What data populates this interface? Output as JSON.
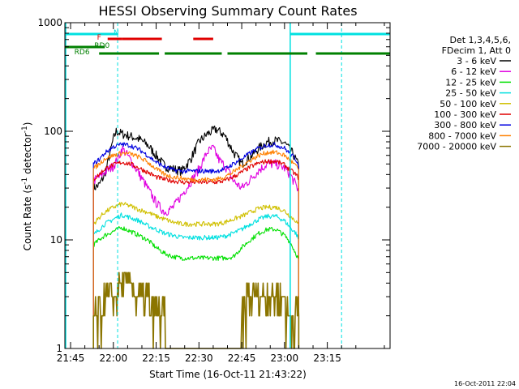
{
  "chart_data": {
    "type": "line",
    "title": "HESSI Observing Summary Count Rates",
    "xlabel": "Start Time (16-Oct-11 21:43:22)",
    "ylabel_main": "Count Rate (s",
    "ylabel_sup1": "-1",
    "ylabel_mid": " detector",
    "ylabel_sup2": "-1",
    "ylabel_end": ")",
    "yscale": "log",
    "ylim": [
      1,
      1000
    ],
    "xlim_minutes": [
      -17,
      97
    ],
    "x_ticks": [
      {
        "m": -15,
        "label": "21:45"
      },
      {
        "m": 0,
        "label": "22:00"
      },
      {
        "m": 15,
        "label": "22:15"
      },
      {
        "m": 30,
        "label": "22:30"
      },
      {
        "m": 45,
        "label": "22:45"
      },
      {
        "m": 60,
        "label": "23:00"
      },
      {
        "m": 75,
        "label": "23:15"
      }
    ],
    "y_ticks": [
      {
        "v": 1,
        "label": "1"
      },
      {
        "v": 10,
        "label": "10"
      },
      {
        "v": 100,
        "label": "100"
      },
      {
        "v": 1000,
        "label": "1000"
      }
    ],
    "legend_header": [
      "Det 1,3,4,5,6,",
      "FDecim 1, Att 0"
    ],
    "legend_position": "right",
    "series": [
      {
        "name": "3 - 6 keV",
        "color": "#000000",
        "points": [
          [
            -7,
            30
          ],
          [
            -5,
            32
          ],
          [
            -3,
            40
          ],
          [
            0,
            85
          ],
          [
            1,
            100
          ],
          [
            3,
            95
          ],
          [
            6,
            90
          ],
          [
            9,
            85
          ],
          [
            12,
            75
          ],
          [
            15,
            60
          ],
          [
            18,
            48
          ],
          [
            21,
            45
          ],
          [
            24,
            43
          ],
          [
            27,
            55
          ],
          [
            30,
            80
          ],
          [
            33,
            95
          ],
          [
            36,
            105
          ],
          [
            39,
            92
          ],
          [
            42,
            65
          ],
          [
            45,
            50
          ],
          [
            48,
            58
          ],
          [
            51,
            70
          ],
          [
            54,
            80
          ],
          [
            57,
            82
          ],
          [
            60,
            78
          ],
          [
            63,
            62
          ],
          [
            65,
            48
          ]
        ]
      },
      {
        "name": "6 - 12 keV",
        "color": "#e000e0",
        "points": [
          [
            -7,
            35
          ],
          [
            -5,
            38
          ],
          [
            -3,
            42
          ],
          [
            0,
            48
          ],
          [
            2,
            58
          ],
          [
            3,
            70
          ],
          [
            5,
            60
          ],
          [
            8,
            45
          ],
          [
            12,
            30
          ],
          [
            15,
            22
          ],
          [
            18,
            18
          ],
          [
            21,
            20
          ],
          [
            24,
            26
          ],
          [
            27,
            34
          ],
          [
            30,
            45
          ],
          [
            33,
            65
          ],
          [
            35,
            70
          ],
          [
            37,
            55
          ],
          [
            40,
            45
          ],
          [
            42,
            35
          ],
          [
            45,
            30
          ],
          [
            48,
            36
          ],
          [
            51,
            44
          ],
          [
            54,
            50
          ],
          [
            57,
            50
          ],
          [
            60,
            46
          ],
          [
            62,
            40
          ],
          [
            64,
            32
          ],
          [
            65,
            28
          ]
        ]
      },
      {
        "name": "12 - 25 keV",
        "color": "#00e000",
        "points": [
          [
            -7,
            9
          ],
          [
            -5,
            10
          ],
          [
            -3,
            11
          ],
          [
            0,
            12
          ],
          [
            3,
            13
          ],
          [
            6,
            12
          ],
          [
            9,
            11
          ],
          [
            12,
            10
          ],
          [
            15,
            8.5
          ],
          [
            18,
            7.5
          ],
          [
            21,
            7
          ],
          [
            24,
            6.8
          ],
          [
            27,
            6.8
          ],
          [
            30,
            6.8
          ],
          [
            33,
            6.8
          ],
          [
            36,
            6.8
          ],
          [
            39,
            6.8
          ],
          [
            42,
            7
          ],
          [
            45,
            8.5
          ],
          [
            48,
            10
          ],
          [
            51,
            11.5
          ],
          [
            54,
            12.5
          ],
          [
            57,
            12.5
          ],
          [
            60,
            11
          ],
          [
            62,
            9.5
          ],
          [
            64,
            7.5
          ],
          [
            65,
            6.5
          ]
        ]
      },
      {
        "name": "25 - 50 keV",
        "color": "#00e0e0",
        "points": [
          [
            -7,
            11
          ],
          [
            -5,
            12.5
          ],
          [
            -3,
            14
          ],
          [
            0,
            15.5
          ],
          [
            3,
            17
          ],
          [
            6,
            16
          ],
          [
            9,
            15
          ],
          [
            12,
            13.5
          ],
          [
            15,
            12.5
          ],
          [
            18,
            11.5
          ],
          [
            21,
            11
          ],
          [
            24,
            10.5
          ],
          [
            27,
            10.5
          ],
          [
            30,
            10.5
          ],
          [
            33,
            10.5
          ],
          [
            36,
            10.5
          ],
          [
            39,
            10.8
          ],
          [
            42,
            11.5
          ],
          [
            45,
            12.5
          ],
          [
            48,
            14
          ],
          [
            51,
            15.5
          ],
          [
            54,
            16.5
          ],
          [
            57,
            16.5
          ],
          [
            60,
            15
          ],
          [
            62,
            13
          ],
          [
            64,
            11.5
          ],
          [
            65,
            10
          ]
        ]
      },
      {
        "name": "50 - 100 keV",
        "color": "#d0c000",
        "points": [
          [
            -7,
            14
          ],
          [
            -5,
            16
          ],
          [
            -3,
            18
          ],
          [
            0,
            20
          ],
          [
            3,
            21.5
          ],
          [
            6,
            20.5
          ],
          [
            9,
            19
          ],
          [
            12,
            18
          ],
          [
            15,
            16.5
          ],
          [
            18,
            15.5
          ],
          [
            21,
            14.5
          ],
          [
            24,
            14
          ],
          [
            27,
            14
          ],
          [
            30,
            14
          ],
          [
            33,
            14
          ],
          [
            36,
            14
          ],
          [
            39,
            14.5
          ],
          [
            42,
            15.5
          ],
          [
            45,
            16.5
          ],
          [
            48,
            18
          ],
          [
            51,
            19.5
          ],
          [
            54,
            20
          ],
          [
            57,
            20
          ],
          [
            60,
            18.5
          ],
          [
            62,
            16.5
          ],
          [
            64,
            15
          ],
          [
            65,
            13.5
          ]
        ]
      },
      {
        "name": "100 - 300 keV",
        "color": "#e00000",
        "points": [
          [
            -7,
            36
          ],
          [
            -5,
            40
          ],
          [
            -3,
            45
          ],
          [
            0,
            49
          ],
          [
            3,
            52
          ],
          [
            6,
            50
          ],
          [
            9,
            46
          ],
          [
            12,
            42
          ],
          [
            15,
            38
          ],
          [
            18,
            36
          ],
          [
            21,
            35
          ],
          [
            24,
            34
          ],
          [
            27,
            34
          ],
          [
            30,
            34
          ],
          [
            33,
            34
          ],
          [
            36,
            34
          ],
          [
            39,
            35
          ],
          [
            42,
            38
          ],
          [
            45,
            42
          ],
          [
            48,
            47
          ],
          [
            51,
            51
          ],
          [
            54,
            53
          ],
          [
            57,
            53
          ],
          [
            60,
            49
          ],
          [
            62,
            44
          ],
          [
            64,
            40
          ],
          [
            65,
            37
          ]
        ]
      },
      {
        "name": "300 - 800 keV",
        "color": "#0000e0",
        "points": [
          [
            -7,
            50
          ],
          [
            -5,
            55
          ],
          [
            -3,
            63
          ],
          [
            0,
            72
          ],
          [
            3,
            76
          ],
          [
            6,
            74
          ],
          [
            9,
            68
          ],
          [
            12,
            60
          ],
          [
            15,
            52
          ],
          [
            18,
            47
          ],
          [
            21,
            44
          ],
          [
            24,
            43
          ],
          [
            27,
            43
          ],
          [
            30,
            43
          ],
          [
            33,
            43
          ],
          [
            36,
            43
          ],
          [
            39,
            45
          ],
          [
            42,
            50
          ],
          [
            45,
            56
          ],
          [
            48,
            63
          ],
          [
            51,
            70
          ],
          [
            54,
            75
          ],
          [
            57,
            75
          ],
          [
            60,
            70
          ],
          [
            62,
            62
          ],
          [
            64,
            55
          ],
          [
            65,
            50
          ]
        ]
      },
      {
        "name": "800 - 7000 keV",
        "color": "#ff8000",
        "points": [
          [
            -7,
            45
          ],
          [
            -5,
            50
          ],
          [
            -3,
            56
          ],
          [
            0,
            60
          ],
          [
            3,
            63
          ],
          [
            6,
            62
          ],
          [
            9,
            58
          ],
          [
            12,
            52
          ],
          [
            15,
            45
          ],
          [
            18,
            40
          ],
          [
            21,
            38
          ],
          [
            24,
            37
          ],
          [
            27,
            36
          ],
          [
            30,
            36
          ],
          [
            33,
            36
          ],
          [
            36,
            36
          ],
          [
            39,
            38
          ],
          [
            42,
            42
          ],
          [
            45,
            48
          ],
          [
            48,
            54
          ],
          [
            51,
            60
          ],
          [
            54,
            64
          ],
          [
            57,
            64
          ],
          [
            60,
            60
          ],
          [
            62,
            54
          ],
          [
            64,
            48
          ],
          [
            65,
            44
          ]
        ]
      },
      {
        "name": "7000 - 20000 keV",
        "color": "#8b7500",
        "points": [
          [
            -7,
            1.8
          ],
          [
            -5,
            2.2
          ],
          [
            -3,
            2.8
          ],
          [
            0,
            3.3
          ],
          [
            3,
            3.8
          ],
          [
            6,
            3.8
          ],
          [
            9,
            3.2
          ],
          [
            12,
            2.6
          ],
          [
            15,
            2.2
          ],
          [
            18,
            1.8
          ],
          [
            45,
            2.2
          ],
          [
            48,
            2.8
          ],
          [
            51,
            3.3
          ],
          [
            54,
            3.5
          ],
          [
            57,
            3.3
          ],
          [
            60,
            2.6
          ],
          [
            63,
            2
          ],
          [
            65,
            1.8
          ]
        ]
      }
    ],
    "state_bars": [
      {
        "label": "N",
        "color": "#00e0e0",
        "label_m": 1,
        "segments": [
          [
            -17,
            1.5
          ],
          [
            62,
            97
          ]
        ]
      },
      {
        "label": "F",
        "color": "#e00000",
        "label_m": -5,
        "segments": [
          [
            -2,
            3
          ],
          [
            3,
            17
          ],
          [
            28,
            35
          ]
        ]
      },
      {
        "label": "RD0",
        "color": "#008000",
        "label_m": -4,
        "segments": [
          [
            -17,
            -3
          ]
        ]
      },
      {
        "label": "RD6",
        "color": "#008000",
        "label_m": -11,
        "segments": [
          [
            -5,
            16
          ],
          [
            18,
            38
          ],
          [
            40,
            68
          ],
          [
            71,
            97
          ]
        ]
      }
    ],
    "vertical_markers_minutes": [
      1.5,
      62,
      80
    ],
    "grid": false
  },
  "footer_timestamp": "16-Oct-2011 22:04"
}
